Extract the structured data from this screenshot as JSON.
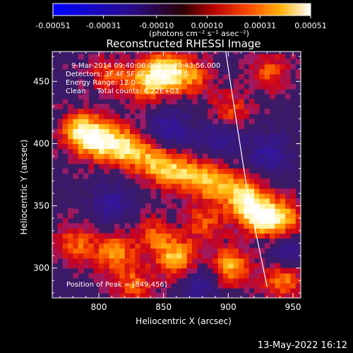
{
  "colorbar": {
    "tick_labels": [
      "-0.00051",
      "-0.00031",
      "-0.00010",
      "0.00010",
      "0.00031",
      "0.00051"
    ],
    "tick_values": [
      -0.00051,
      -0.00031,
      -0.0001,
      0.0001,
      0.00031,
      0.00051
    ],
    "unit_label": "(photons cm⁻² s⁻¹ asec⁻²)",
    "range": [
      -0.00051,
      0.00051
    ],
    "colortable": "RHESSI red-temperature with blue negative"
  },
  "footer": {
    "timestamp": "13-May-2022 16:12"
  },
  "annotations": {
    "time_range": "9-Mar-2014 09:40:08.000 to 09:43:56.000",
    "detectors": "Detectors: 3F 4F 5F 6F 7F 8F, Att 0",
    "energy_range": "Energy Range: 12.0 - 25.0 keV",
    "method": "Clean     Total counts: 6.22E+03",
    "peak_position": "Position of Peak = [849,456]"
  },
  "colors": {
    "background": "#000000",
    "axes": "#ffffff",
    "limb_line": "#ffffff",
    "image_background": "#3d1a64"
  },
  "chart_data": {
    "type": "heatmap",
    "title": "Reconstructed RHESSI Image",
    "xlabel": "Heliocentric X (arcsec)",
    "ylabel": "Heliocentric Y (arcsec)",
    "xlim": [
      764,
      956
    ],
    "ylim": [
      276,
      474
    ],
    "x_ticks": [
      800,
      850,
      900,
      950
    ],
    "y_ticks": [
      300,
      350,
      400,
      450
    ],
    "peak": [
      849,
      456
    ],
    "solar_limb": [
      [
        898,
        474
      ],
      [
        903,
        440
      ],
      [
        909,
        400
      ],
      [
        915,
        360
      ],
      [
        923,
        320
      ],
      [
        930,
        285
      ]
    ],
    "bright_features": [
      {
        "x": 849,
        "y": 456,
        "intensity": 1.0
      },
      {
        "x": 784,
        "y": 408,
        "intensity": 0.9
      },
      {
        "x": 800,
        "y": 400,
        "intensity": 0.85
      },
      {
        "x": 820,
        "y": 395,
        "intensity": 0.8
      },
      {
        "x": 842,
        "y": 383,
        "intensity": 0.75
      },
      {
        "x": 862,
        "y": 374,
        "intensity": 0.7
      },
      {
        "x": 886,
        "y": 368,
        "intensity": 0.75
      },
      {
        "x": 910,
        "y": 356,
        "intensity": 0.85
      },
      {
        "x": 922,
        "y": 340,
        "intensity": 0.9
      },
      {
        "x": 940,
        "y": 338,
        "intensity": 0.75
      },
      {
        "x": 832,
        "y": 447,
        "intensity": 0.6
      },
      {
        "x": 870,
        "y": 452,
        "intensity": 0.55
      },
      {
        "x": 900,
        "y": 424,
        "intensity": 0.5
      },
      {
        "x": 930,
        "y": 455,
        "intensity": 0.5
      },
      {
        "x": 805,
        "y": 454,
        "intensity": 0.45
      },
      {
        "x": 858,
        "y": 306,
        "intensity": 0.8
      },
      {
        "x": 810,
        "y": 310,
        "intensity": 0.65
      },
      {
        "x": 780,
        "y": 318,
        "intensity": 0.55
      },
      {
        "x": 900,
        "y": 300,
        "intensity": 0.75
      },
      {
        "x": 940,
        "y": 290,
        "intensity": 0.7
      },
      {
        "x": 880,
        "y": 335,
        "intensity": 0.5
      },
      {
        "x": 840,
        "y": 325,
        "intensity": 0.5
      },
      {
        "x": 825,
        "y": 284,
        "intensity": 0.55
      }
    ],
    "dark_features": [
      {
        "x": 853,
        "y": 408,
        "intensity": -0.5
      },
      {
        "x": 893,
        "y": 403,
        "intensity": -0.45
      },
      {
        "x": 808,
        "y": 350,
        "intensity": -0.4
      },
      {
        "x": 930,
        "y": 390,
        "intensity": -0.45
      },
      {
        "x": 875,
        "y": 285,
        "intensity": -0.4
      },
      {
        "x": 945,
        "y": 310,
        "intensity": -0.5
      }
    ]
  }
}
